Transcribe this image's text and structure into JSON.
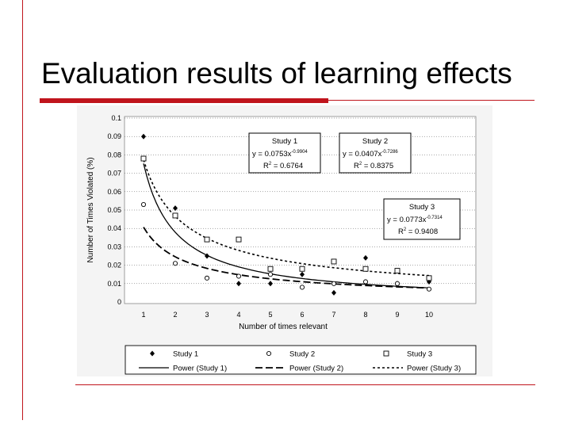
{
  "slide": {
    "title": "Evaluation results of learning effects"
  },
  "colors": {
    "accent": "#c0141c"
  },
  "chart_data": {
    "type": "scatter",
    "xlabel": "Number of times relevant",
    "ylabel": "Number of Times Violated (%)",
    "xlim": [
      1,
      10
    ],
    "ylim": [
      0,
      0.1
    ],
    "x_ticks": [
      1,
      2,
      3,
      4,
      5,
      6,
      7,
      8,
      9,
      10
    ],
    "y_ticks": [
      0,
      0.01,
      0.02,
      0.03,
      0.04,
      0.05,
      0.06,
      0.07,
      0.08,
      0.09,
      0.1
    ],
    "y_tick_labels": [
      "0",
      "0.01",
      "0.02",
      "0.03",
      "0.04",
      "0.05",
      "0.06",
      "0.07",
      "0.08",
      "0.09",
      "0.1"
    ],
    "grid": true,
    "legend_position": "bottom",
    "series": [
      {
        "name": "Study 1",
        "marker": "diamond",
        "x": [
          1,
          2,
          3,
          4,
          5,
          6,
          7,
          8,
          9,
          10
        ],
        "y": [
          0.09,
          0.051,
          0.025,
          0.01,
          0.01,
          0.015,
          0.005,
          0.024,
          0.01,
          0.011
        ]
      },
      {
        "name": "Study 2",
        "marker": "circle",
        "x": [
          1,
          2,
          3,
          4,
          5,
          6,
          7,
          8,
          9,
          10
        ],
        "y": [
          0.053,
          0.021,
          0.013,
          0.014,
          0.015,
          0.008,
          0.01,
          0.011,
          0.01,
          0.007
        ]
      },
      {
        "name": "Study 3",
        "marker": "square",
        "x": [
          1,
          2,
          3,
          4,
          5,
          6,
          7,
          8,
          9,
          10
        ],
        "y": [
          0.078,
          0.047,
          0.034,
          0.034,
          0.018,
          0.018,
          0.022,
          0.018,
          0.017,
          0.013
        ]
      }
    ],
    "trendlines": [
      {
        "name": "Power (Study 1)",
        "dash": "solid",
        "a": 0.0753,
        "b": -0.9904
      },
      {
        "name": "Power (Study 2)",
        "dash": "long-dash",
        "a": 0.0407,
        "b": -0.7286
      },
      {
        "name": "Power (Study 3)",
        "dash": "short-dash",
        "a": 0.0773,
        "b": -0.7314
      }
    ],
    "annotations": [
      {
        "title": "Study 1",
        "coef": "y = 0.0753x",
        "exp": "-0.9904",
        "r_lead": "R",
        "r_sup": "2",
        "r_val": " = 0.6764"
      },
      {
        "title": "Study 2",
        "coef": "y = 0.0407x",
        "exp": "-0.7286",
        "r_lead": "R",
        "r_sup": "2",
        "r_val": " = 0.8375"
      },
      {
        "title": "Study 3",
        "coef": "y = 0.0773x",
        "exp": "-0.7314",
        "r_lead": "R",
        "r_sup": "2",
        "r_val": " = 0.9408"
      }
    ],
    "legend": [
      {
        "label": "Study 1",
        "kind": "diamond"
      },
      {
        "label": "Study 2",
        "kind": "circle"
      },
      {
        "label": "Study 3",
        "kind": "square"
      },
      {
        "label": "Power (Study 1)",
        "kind": "solid"
      },
      {
        "label": "Power (Study 2)",
        "kind": "long-dash"
      },
      {
        "label": "Power (Study 3)",
        "kind": "short-dash"
      }
    ]
  }
}
